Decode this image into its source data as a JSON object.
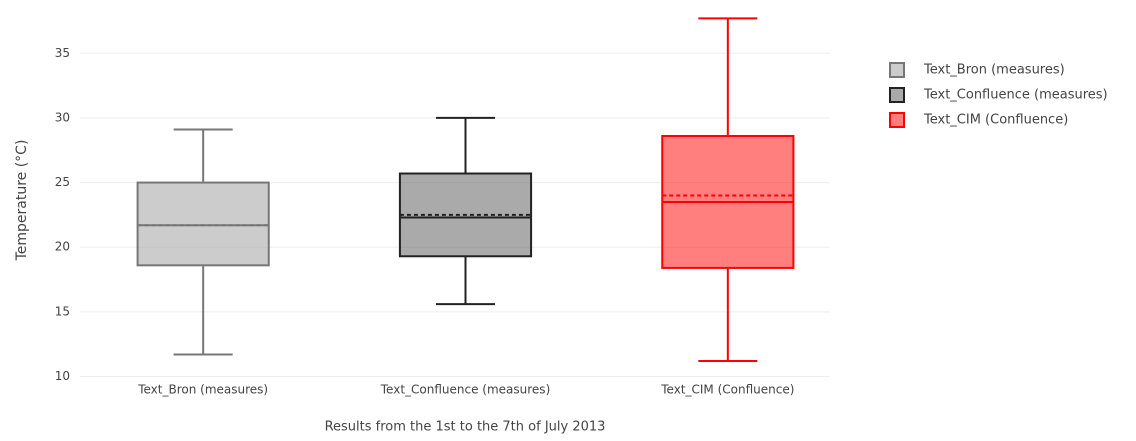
{
  "chart_data": {
    "type": "box",
    "y_label": "Temperature (°C)",
    "x_label": "Results from the 1st to the 7th of July 2013",
    "categories": [
      "Text_Bron (measures)",
      "Text_Confluence (measures)",
      "Text_CIM (Confluence)"
    ],
    "series": [
      {
        "name": "Text_Bron (measures)",
        "color": "#999999",
        "stroke": "#777777",
        "min": 11.7,
        "q1": 18.6,
        "median": 21.7,
        "mean": 21.7,
        "q3": 25,
        "max": 29.1
      },
      {
        "name": "Text_Confluence (measures)",
        "color": "#555555",
        "stroke": "#222222",
        "min": 15.6,
        "q1": 19.3,
        "median": 22.3,
        "mean": 22.5,
        "q3": 25.7,
        "max": 30
      },
      {
        "name": "Text_CIM (Confluence)",
        "color": "#ff0000",
        "stroke": "#ff0000",
        "min": 11.2,
        "q1": 18.4,
        "median": 23.5,
        "mean": 24,
        "q3": 28.6,
        "max": 37.7
      }
    ],
    "ylim": [
      9.5,
      38.5
    ],
    "yticks": [
      10,
      15,
      20,
      25,
      30,
      35
    ],
    "grid": true,
    "legend": "right"
  }
}
